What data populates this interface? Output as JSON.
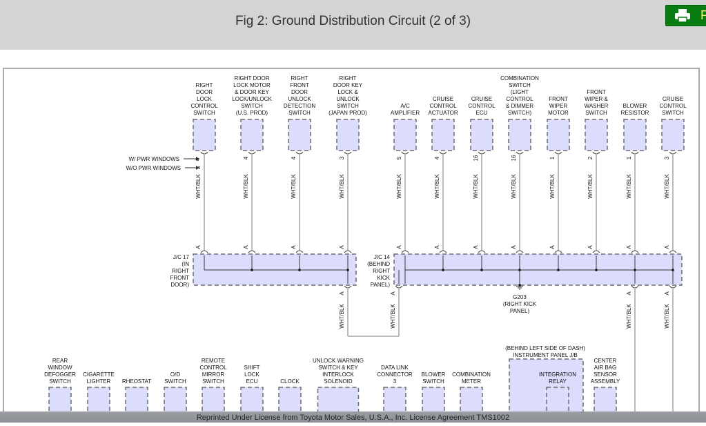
{
  "header": {
    "title": "Fig 2: Ground Distribution Circuit (2 of 3)",
    "print_label": "P",
    "print_icon": "printer-icon",
    "accent": "#0a7d12"
  },
  "wire_color": "WHT/BLK",
  "pin_letter": "A",
  "notes": {
    "with_pwr": "W/ PWR WINDOWS",
    "without_pwr": "W/O PWR WINDOWS",
    "with_pwr_pin": "4"
  },
  "top_components": [
    {
      "label": [
        "RIGHT",
        "DOOR",
        "LOCK",
        "CONTROL",
        "SWITCH"
      ],
      "pin": "3"
    },
    {
      "label": [
        "RIGHT DOOR",
        "LOCK MOTOR",
        "& DOOR KEY",
        "LOCK/UNLOCK",
        "SWITCH",
        "(U.S. PROD)"
      ],
      "pin": "4"
    },
    {
      "label": [
        "RIGHT",
        "FRONT",
        "DOOR",
        "UNLOCK",
        "DETECTION",
        "SWITCH"
      ],
      "pin": "4"
    },
    {
      "label": [
        "RIGHT",
        "DOOR KEY",
        "LOCK &",
        "UNLOCK",
        "SWITCH",
        "(JAPAN PROD)"
      ],
      "pin": "3"
    },
    {
      "label": [
        "A/C",
        "AMPLIFIER"
      ],
      "pin": "5"
    },
    {
      "label": [
        "CRUISE",
        "CONTROL",
        "ACTUATOR"
      ],
      "pin": "4"
    },
    {
      "label": [
        "CRUISE",
        "CONTROL",
        "ECU"
      ],
      "pin": "16"
    },
    {
      "label": [
        "COMBINATION",
        "SWITCH",
        "(LIGHT",
        "CONTROL",
        "& DIMMER",
        "SWITCH)"
      ],
      "pin": "16"
    },
    {
      "label": [
        "FRONT",
        "WIPER",
        "MOTOR"
      ],
      "pin": "1"
    },
    {
      "label": [
        "FRONT",
        "WIPER &",
        "WASHER",
        "SWITCH"
      ],
      "pin": "2"
    },
    {
      "label": [
        "BLOWER",
        "RESISTOR"
      ],
      "pin": "1"
    },
    {
      "label": [
        "CRUISE",
        "CONTROL",
        "SWITCH"
      ],
      "pin": "3"
    }
  ],
  "junctions": [
    {
      "label": [
        "J/C 17",
        "(IN",
        "RIGHT",
        "FRONT",
        "DOOR)"
      ]
    },
    {
      "label": [
        "J/C 14",
        "(BEHIND",
        "RIGHT",
        "KICK",
        "PANEL)"
      ]
    }
  ],
  "ground": {
    "label": [
      "G203",
      "(RIGHT KICK",
      "PANEL)"
    ]
  },
  "bottom_components": [
    {
      "label": [
        "REAR",
        "WINDOW",
        "DEFOGGER",
        "SWITCH"
      ]
    },
    {
      "label": [
        "CIGARETTE",
        "LIGHTER"
      ]
    },
    {
      "label": [
        "RHEOSTAT"
      ]
    },
    {
      "label": [
        "O/D",
        "SWITCH"
      ]
    },
    {
      "label": [
        "REMOTE",
        "CONTROL",
        "MIRROR",
        "SWITCH"
      ]
    },
    {
      "label": [
        "SHIFT",
        "LOCK",
        "ECU"
      ]
    },
    {
      "label": [
        "CLOCK"
      ]
    },
    {
      "label": [
        "UNLOCK WARNING",
        "SWITCH & KEY",
        "INTERLOCK",
        "SOLENOID"
      ]
    },
    {
      "label": [
        "DATA LINK",
        "CONNECTOR",
        "3"
      ]
    },
    {
      "label": [
        "BLOWER",
        "SWITCH"
      ]
    },
    {
      "label": [
        "COMBINATION",
        "METER"
      ]
    },
    {
      "label": [
        "CENTER",
        "AIR BAG",
        "SENSOR",
        "ASSEMBLY"
      ]
    }
  ],
  "instrument_panel": {
    "label": [
      "(BEHIND LEFT SIDE OF DASH)",
      "INSTRUMENT PANEL J/B"
    ],
    "relay_label": [
      "INTEGRATION",
      "RELAY"
    ]
  },
  "colors": {
    "box_fill": "#dcdcfc",
    "box_stroke": "#6b6b6b",
    "wire": "#bbbbbb"
  },
  "footer": {
    "text": "Reprinted Under License from Toyota Motor Sales, U.S.A., Inc. License Agreement TMS1002"
  }
}
